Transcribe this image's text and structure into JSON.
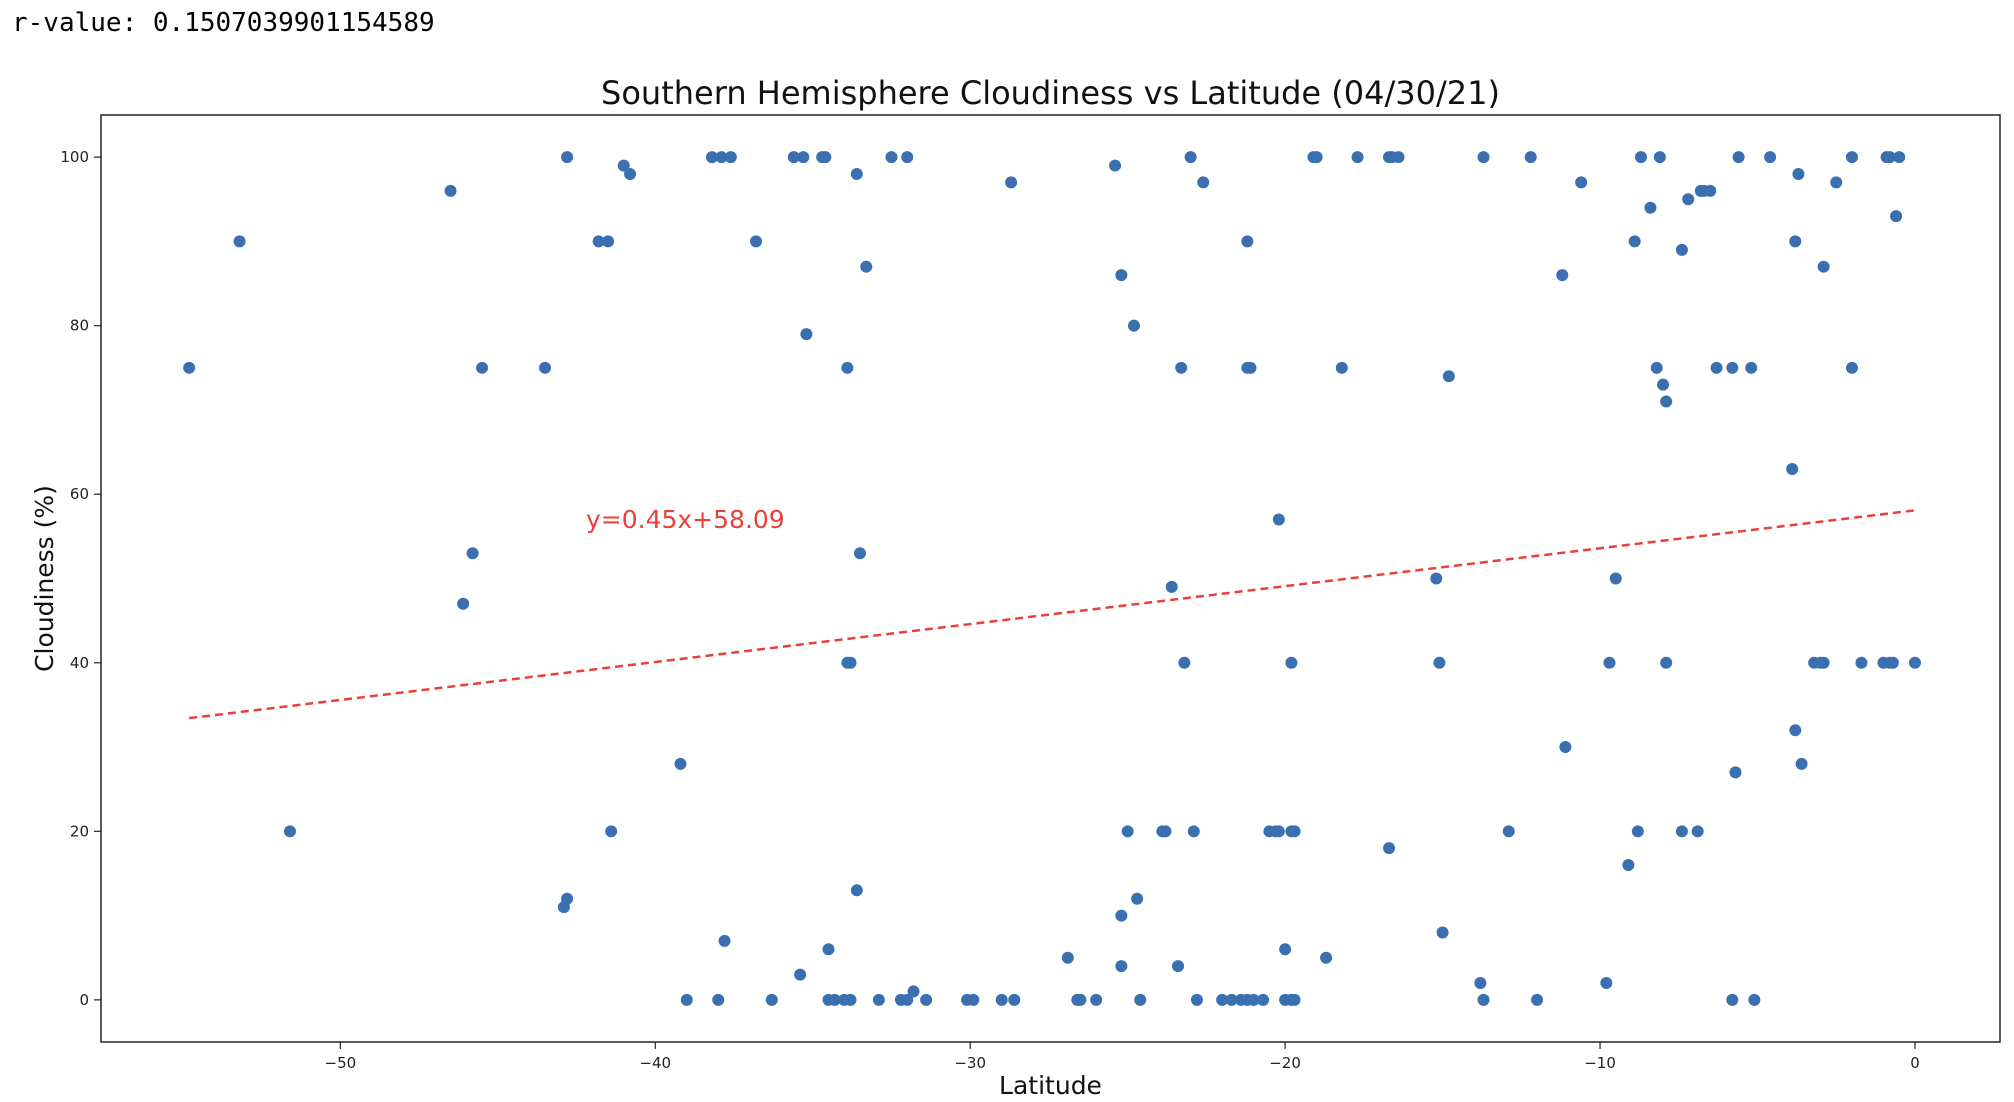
{
  "output": {
    "rvalue_text": "r-value: 0.1507039901154589"
  },
  "chart_data": {
    "type": "scatter",
    "title": "Southern Hemisphere Cloudiness vs Latitude (04/30/21)",
    "xlabel": "Latitude",
    "ylabel": "Cloudiness (%)",
    "xlim": [
      -57.6,
      2.7
    ],
    "ylim": [
      -5,
      105
    ],
    "xticks": [
      -50,
      -40,
      -30,
      -20,
      -10,
      0
    ],
    "yticks": [
      0,
      20,
      40,
      60,
      80,
      100
    ],
    "grid": false,
    "point_color": "#3a6fb0",
    "line_color": "#e8403a",
    "regression": {
      "slope": 0.45,
      "intercept": 58.09,
      "x_range": [
        -54.8,
        0
      ],
      "label": "y=0.45x+58.09",
      "label_pos": [
        -42.2,
        56
      ]
    },
    "points": [
      [
        -54.8,
        75
      ],
      [
        -53.2,
        90
      ],
      [
        -51.6,
        20
      ],
      [
        -46.5,
        96
      ],
      [
        -46.1,
        47
      ],
      [
        -45.8,
        53
      ],
      [
        -45.5,
        75
      ],
      [
        -43.5,
        75
      ],
      [
        -42.9,
        11
      ],
      [
        -42.8,
        12
      ],
      [
        -42.8,
        100
      ],
      [
        -41.8,
        90
      ],
      [
        -41.5,
        90
      ],
      [
        -41.4,
        20
      ],
      [
        -41.0,
        99
      ],
      [
        -40.8,
        98
      ],
      [
        -39.2,
        28
      ],
      [
        -39.0,
        0
      ],
      [
        -38.2,
        100
      ],
      [
        -38.0,
        0
      ],
      [
        -37.9,
        100
      ],
      [
        -37.8,
        7
      ],
      [
        -37.6,
        100
      ],
      [
        -36.8,
        90
      ],
      [
        -36.3,
        0
      ],
      [
        -35.6,
        100
      ],
      [
        -35.4,
        3
      ],
      [
        -35.3,
        100
      ],
      [
        -35.2,
        79
      ],
      [
        -34.7,
        100
      ],
      [
        -34.6,
        100
      ],
      [
        -34.5,
        6
      ],
      [
        -34.5,
        0
      ],
      [
        -34.3,
        0
      ],
      [
        -34.0,
        0
      ],
      [
        -33.9,
        75
      ],
      [
        -33.9,
        40
      ],
      [
        -33.8,
        40
      ],
      [
        -33.8,
        0
      ],
      [
        -33.6,
        13
      ],
      [
        -33.6,
        98
      ],
      [
        -33.5,
        53
      ],
      [
        -33.3,
        87
      ],
      [
        -32.9,
        0
      ],
      [
        -32.5,
        100
      ],
      [
        -32.2,
        0
      ],
      [
        -32.0,
        0
      ],
      [
        -32.0,
        100
      ],
      [
        -31.8,
        1
      ],
      [
        -31.4,
        0
      ],
      [
        -30.1,
        0
      ],
      [
        -29.9,
        0
      ],
      [
        -29.0,
        0
      ],
      [
        -28.7,
        97
      ],
      [
        -28.6,
        0
      ],
      [
        -26.9,
        5
      ],
      [
        -26.6,
        0
      ],
      [
        -26.5,
        0
      ],
      [
        -26.0,
        0
      ],
      [
        -25.4,
        99
      ],
      [
        -25.2,
        10
      ],
      [
        -25.2,
        4
      ],
      [
        -25.2,
        86
      ],
      [
        -25.0,
        20
      ],
      [
        -24.8,
        80
      ],
      [
        -24.7,
        12
      ],
      [
        -24.6,
        0
      ],
      [
        -23.9,
        20
      ],
      [
        -23.8,
        20
      ],
      [
        -23.6,
        49
      ],
      [
        -23.4,
        4
      ],
      [
        -23.3,
        75
      ],
      [
        -23.2,
        40
      ],
      [
        -23.0,
        100
      ],
      [
        -22.9,
        20
      ],
      [
        -22.8,
        0
      ],
      [
        -22.6,
        97
      ],
      [
        -22.0,
        0
      ],
      [
        -21.7,
        0
      ],
      [
        -21.4,
        0
      ],
      [
        -21.2,
        90
      ],
      [
        -21.2,
        0
      ],
      [
        -21.2,
        75
      ],
      [
        -21.1,
        75
      ],
      [
        -21.0,
        0
      ],
      [
        -20.7,
        0
      ],
      [
        -20.5,
        20
      ],
      [
        -20.3,
        20
      ],
      [
        -20.2,
        57
      ],
      [
        -20.2,
        20
      ],
      [
        -20.0,
        6
      ],
      [
        -20.0,
        0
      ],
      [
        -19.8,
        40
      ],
      [
        -19.8,
        0
      ],
      [
        -19.8,
        20
      ],
      [
        -19.7,
        20
      ],
      [
        -19.7,
        0
      ],
      [
        -19.1,
        100
      ],
      [
        -19.0,
        100
      ],
      [
        -18.7,
        5
      ],
      [
        -18.2,
        75
      ],
      [
        -17.7,
        100
      ],
      [
        -16.7,
        18
      ],
      [
        -16.7,
        100
      ],
      [
        -16.6,
        100
      ],
      [
        -16.4,
        100
      ],
      [
        -15.2,
        50
      ],
      [
        -15.1,
        40
      ],
      [
        -15.0,
        8
      ],
      [
        -14.8,
        74
      ],
      [
        -13.8,
        2
      ],
      [
        -13.7,
        0
      ],
      [
        -13.7,
        100
      ],
      [
        -12.9,
        20
      ],
      [
        -12.2,
        100
      ],
      [
        -12.0,
        0
      ],
      [
        -11.2,
        86
      ],
      [
        -11.1,
        30
      ],
      [
        -10.6,
        97
      ],
      [
        -9.8,
        2
      ],
      [
        -9.7,
        40
      ],
      [
        -9.5,
        50
      ],
      [
        -9.1,
        16
      ],
      [
        -8.9,
        90
      ],
      [
        -8.8,
        20
      ],
      [
        -8.7,
        100
      ],
      [
        -8.4,
        94
      ],
      [
        -8.2,
        75
      ],
      [
        -8.1,
        100
      ],
      [
        -8.0,
        73
      ],
      [
        -7.9,
        40
      ],
      [
        -7.9,
        71
      ],
      [
        -7.4,
        20
      ],
      [
        -7.4,
        89
      ],
      [
        -7.2,
        95
      ],
      [
        -6.9,
        20
      ],
      [
        -6.8,
        96
      ],
      [
        -6.7,
        96
      ],
      [
        -6.5,
        96
      ],
      [
        -6.3,
        75
      ],
      [
        -5.8,
        75
      ],
      [
        -5.8,
        0
      ],
      [
        -5.7,
        27
      ],
      [
        -5.6,
        100
      ],
      [
        -5.2,
        75
      ],
      [
        -5.1,
        0
      ],
      [
        -4.6,
        100
      ],
      [
        -3.9,
        63
      ],
      [
        -3.8,
        32
      ],
      [
        -3.8,
        90
      ],
      [
        -3.7,
        98
      ],
      [
        -3.6,
        28
      ],
      [
        -3.2,
        40
      ],
      [
        -3.0,
        40
      ],
      [
        -2.9,
        87
      ],
      [
        -2.9,
        40
      ],
      [
        -2.5,
        97
      ],
      [
        -2.0,
        75
      ],
      [
        -2.0,
        100
      ],
      [
        -1.7,
        40
      ],
      [
        -1.0,
        40
      ],
      [
        -0.9,
        100
      ],
      [
        -0.8,
        100
      ],
      [
        -0.8,
        40
      ],
      [
        -0.7,
        40
      ],
      [
        -0.6,
        93
      ],
      [
        -0.5,
        100
      ],
      [
        -0.0,
        40
      ]
    ]
  }
}
